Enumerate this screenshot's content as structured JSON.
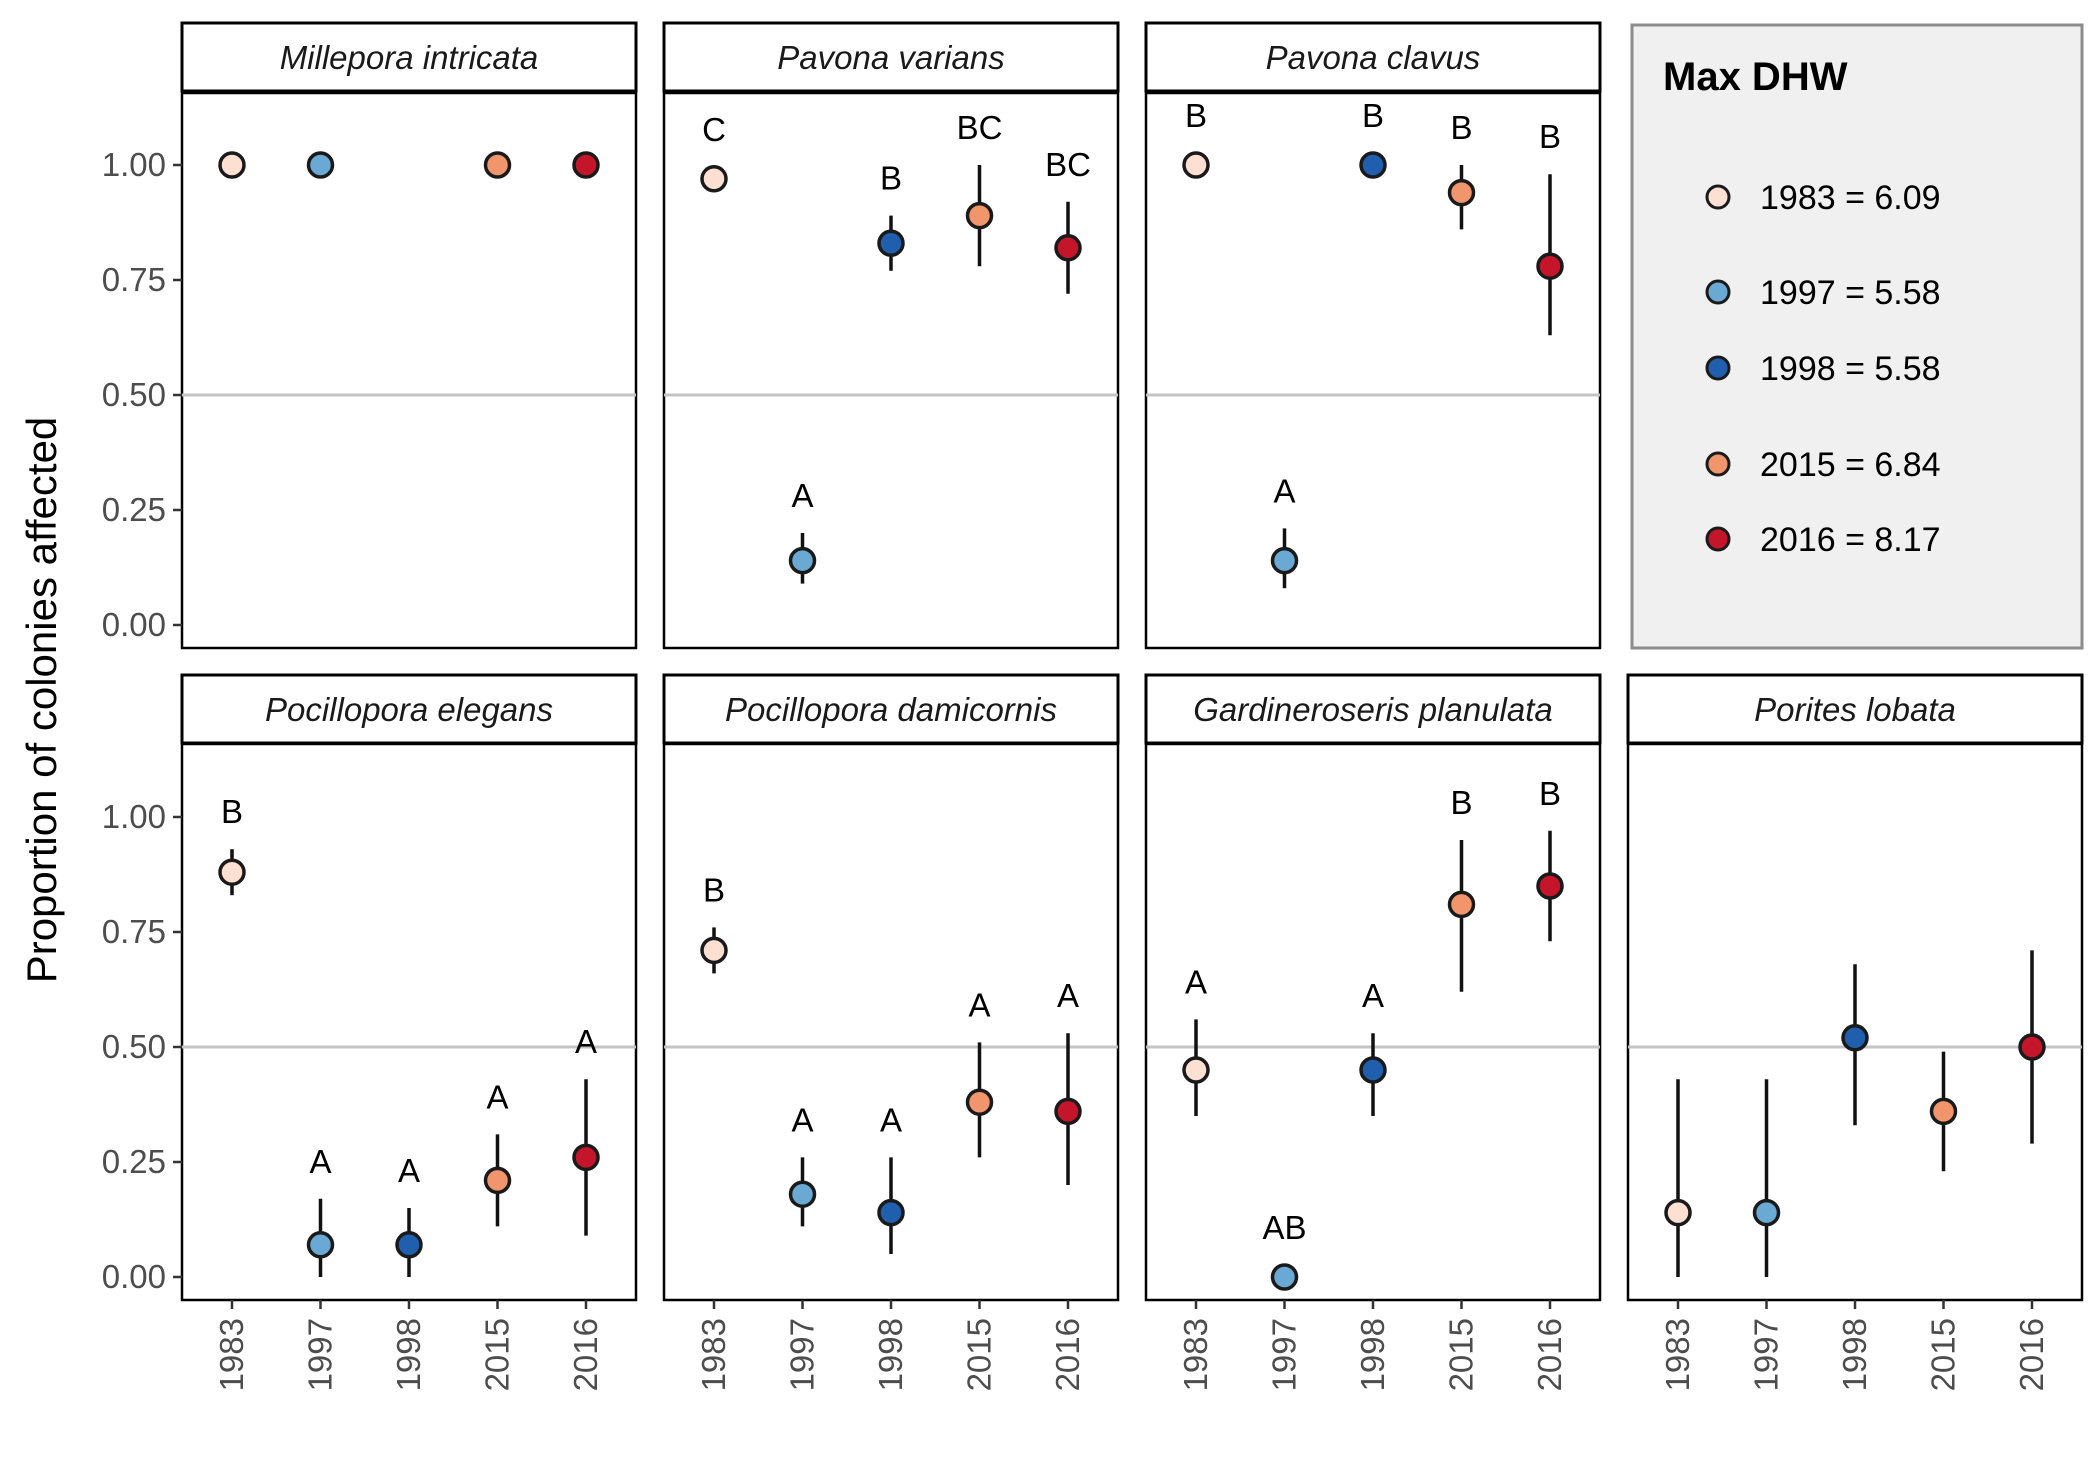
{
  "chart_data": {
    "type": "scatter",
    "ylabel": "Proportion of colonies affected",
    "ylim": [
      -0.05,
      1.1
    ],
    "yticks": [
      "0.00",
      "0.25",
      "0.50",
      "0.75",
      "1.00"
    ],
    "reference_line": 0.5,
    "categories": [
      "1983",
      "1997",
      "1998",
      "2015",
      "2016"
    ],
    "colors": {
      "1983": "#fde0d2",
      "1997": "#6aa9d4",
      "1998": "#1f5fad",
      "2015": "#f0956c",
      "2016": "#c4152b"
    },
    "legend": {
      "title": "Max DHW",
      "entries": [
        {
          "year": "1983",
          "label": "1983 = 6.09"
        },
        {
          "year": "1997",
          "label": "1997 = 5.58"
        },
        {
          "year": "1998",
          "label": "1998 = 5.58"
        },
        {
          "year": "2015",
          "label": "2015 = 6.84"
        },
        {
          "year": "2016",
          "label": "2016 = 8.17"
        }
      ]
    },
    "panels": [
      {
        "species": "Millepora intricata",
        "points": [
          {
            "year": "1983",
            "value": 1.0,
            "low": null,
            "high": null,
            "label": ""
          },
          {
            "year": "1997",
            "value": 1.0,
            "low": null,
            "high": null,
            "label": ""
          },
          {
            "year": "2015",
            "value": 1.0,
            "low": null,
            "high": null,
            "label": ""
          },
          {
            "year": "2016",
            "value": 1.0,
            "low": null,
            "high": null,
            "label": ""
          }
        ]
      },
      {
        "species": "Pavona varians",
        "points": [
          {
            "year": "1983",
            "value": 0.97,
            "low": null,
            "high": null,
            "label": "C"
          },
          {
            "year": "1997",
            "value": 0.14,
            "low": 0.09,
            "high": 0.2,
            "label": "A"
          },
          {
            "year": "1998",
            "value": 0.83,
            "low": 0.77,
            "high": 0.89,
            "label": "B"
          },
          {
            "year": "2015",
            "value": 0.89,
            "low": 0.78,
            "high": 1.0,
            "label": "BC"
          },
          {
            "year": "2016",
            "value": 0.82,
            "low": 0.72,
            "high": 0.92,
            "label": "BC"
          }
        ]
      },
      {
        "species": "Pavona clavus",
        "points": [
          {
            "year": "1983",
            "value": 1.0,
            "low": null,
            "high": null,
            "label": "B"
          },
          {
            "year": "1997",
            "value": 0.14,
            "low": 0.08,
            "high": 0.21,
            "label": "A"
          },
          {
            "year": "1998",
            "value": 1.0,
            "low": null,
            "high": null,
            "label": "B"
          },
          {
            "year": "2015",
            "value": 0.94,
            "low": 0.86,
            "high": 1.0,
            "label": "B"
          },
          {
            "year": "2016",
            "value": 0.78,
            "low": 0.63,
            "high": 0.98,
            "label": "B"
          }
        ]
      },
      {
        "species": "Pocillopora elegans",
        "points": [
          {
            "year": "1983",
            "value": 0.88,
            "low": 0.83,
            "high": 0.93,
            "label": "B"
          },
          {
            "year": "1997",
            "value": 0.07,
            "low": 0.0,
            "high": 0.17,
            "label": "A"
          },
          {
            "year": "1998",
            "value": 0.07,
            "low": 0.0,
            "high": 0.15,
            "label": "A"
          },
          {
            "year": "2015",
            "value": 0.21,
            "low": 0.11,
            "high": 0.31,
            "label": "A"
          },
          {
            "year": "2016",
            "value": 0.26,
            "low": 0.09,
            "high": 0.43,
            "label": "A"
          }
        ]
      },
      {
        "species": "Pocillopora damicornis",
        "points": [
          {
            "year": "1983",
            "value": 0.71,
            "low": 0.66,
            "high": 0.76,
            "label": "B"
          },
          {
            "year": "1997",
            "value": 0.18,
            "low": 0.11,
            "high": 0.26,
            "label": "A"
          },
          {
            "year": "1998",
            "value": 0.14,
            "low": 0.05,
            "high": 0.26,
            "label": "A"
          },
          {
            "year": "2015",
            "value": 0.38,
            "low": 0.26,
            "high": 0.51,
            "label": "A"
          },
          {
            "year": "2016",
            "value": 0.36,
            "low": 0.2,
            "high": 0.53,
            "label": "A"
          }
        ]
      },
      {
        "species": "Gardineroseris planulata",
        "points": [
          {
            "year": "1983",
            "value": 0.45,
            "low": 0.35,
            "high": 0.56,
            "label": "A"
          },
          {
            "year": "1997",
            "value": 0.0,
            "low": null,
            "high": null,
            "label": "AB"
          },
          {
            "year": "1998",
            "value": 0.45,
            "low": 0.35,
            "high": 0.53,
            "label": "A"
          },
          {
            "year": "2015",
            "value": 0.81,
            "low": 0.62,
            "high": 0.95,
            "label": "B"
          },
          {
            "year": "2016",
            "value": 0.85,
            "low": 0.73,
            "high": 0.97,
            "label": "B"
          }
        ]
      },
      {
        "species": "Porites lobata",
        "points": [
          {
            "year": "1983",
            "value": 0.14,
            "low": 0.0,
            "high": 0.43,
            "label": ""
          },
          {
            "year": "1997",
            "value": 0.14,
            "low": 0.0,
            "high": 0.43,
            "label": ""
          },
          {
            "year": "1998",
            "value": 0.52,
            "low": 0.33,
            "high": 0.68,
            "label": ""
          },
          {
            "year": "2015",
            "value": 0.36,
            "low": 0.23,
            "high": 0.49,
            "label": ""
          },
          {
            "year": "2016",
            "value": 0.5,
            "low": 0.29,
            "high": 0.71,
            "label": ""
          }
        ]
      }
    ]
  }
}
